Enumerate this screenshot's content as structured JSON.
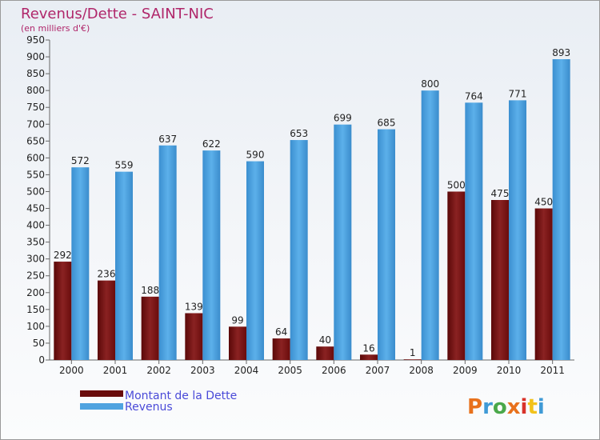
{
  "chart_data": {
    "type": "bar",
    "title": "Revenus/Dette - SAINT-NIC",
    "subtitle": "(en milliers d'€)",
    "categories": [
      "2000",
      "2001",
      "2002",
      "2003",
      "2004",
      "2005",
      "2006",
      "2007",
      "2008",
      "2009",
      "2010",
      "2011"
    ],
    "series": [
      {
        "name": "Montant de la Dette",
        "color": "#7a1010",
        "values": [
          292,
          236,
          188,
          139,
          99,
          64,
          40,
          16,
          1,
          500,
          475,
          450
        ]
      },
      {
        "name": "Revenus",
        "color": "#4fa3e0",
        "values": [
          572,
          559,
          637,
          622,
          590,
          653,
          699,
          685,
          800,
          764,
          771,
          893
        ]
      }
    ],
    "ylim": [
      0,
      950
    ],
    "ytick_step": 50,
    "grid": false,
    "legend_position": "bottom-left"
  },
  "logo": {
    "text": "Proxiti",
    "colors": [
      "#e8711c",
      "#3f9ad6",
      "#4aa84a",
      "#e8711c",
      "#d8322a",
      "#f2c21b",
      "#3f9ad6"
    ]
  }
}
